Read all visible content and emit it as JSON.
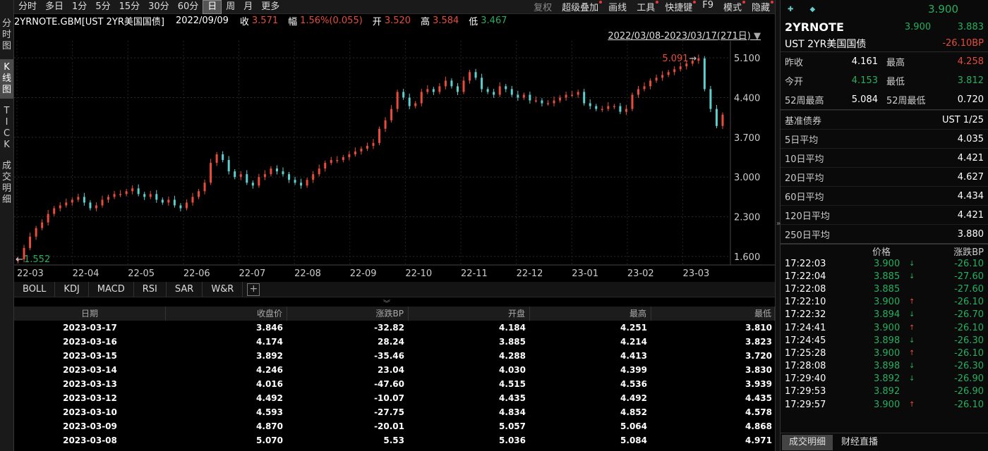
{
  "left_strip": [
    "分时图",
    "K线图",
    "TICK",
    "成交明细"
  ],
  "periods": [
    "分时",
    "多日",
    "1分",
    "5分",
    "15分",
    "30分",
    "60分",
    "日",
    "周",
    "月",
    "更多"
  ],
  "tools": [
    "复权",
    "超级叠加",
    "画线",
    "工具",
    "快捷键",
    "F9",
    "模式",
    "隐藏"
  ],
  "info": {
    "symbol": "2YRNOTE.GBM[UST 2YR美国国债]",
    "date": "2022/09/09",
    "close_label": "收",
    "close": "3.571",
    "range_label": "幅",
    "range": "1.56%(0.055)",
    "open_label": "开",
    "open": "3.520",
    "high_label": "高",
    "high": "3.584",
    "low_label": "低",
    "low": "3.467"
  },
  "chart_range": "2022/03/08-2023/03/17(271日)",
  "chart_data": {
    "type": "candlestick",
    "x_ticks": [
      "22-03",
      "22-04",
      "22-05",
      "22-06",
      "22-07",
      "22-08",
      "22-09",
      "22-10",
      "22-11",
      "22-12",
      "23-01",
      "23-02",
      "23-03"
    ],
    "y_ticks": [
      "5.100",
      "4.400",
      "3.700",
      "3.000",
      "2.300",
      "1.600"
    ],
    "ylim": [
      1.45,
      5.4
    ],
    "max_marker": "5.091",
    "min_marker": "1.552",
    "grid": true,
    "close_path": [
      1.55,
      1.75,
      1.95,
      2.1,
      2.2,
      2.35,
      2.45,
      2.5,
      2.55,
      2.6,
      2.65,
      2.55,
      2.45,
      2.5,
      2.6,
      2.65,
      2.7,
      2.7,
      2.75,
      2.8,
      2.7,
      2.65,
      2.7,
      2.6,
      2.55,
      2.6,
      2.5,
      2.45,
      2.55,
      2.65,
      2.75,
      2.9,
      3.25,
      3.4,
      3.3,
      3.1,
      3.0,
      3.05,
      2.9,
      2.85,
      3.0,
      3.05,
      3.15,
      3.1,
      3.05,
      2.95,
      2.9,
      2.85,
      2.95,
      3.05,
      3.15,
      3.25,
      3.3,
      3.3,
      3.35,
      3.4,
      3.45,
      3.5,
      3.55,
      3.6,
      3.85,
      4.0,
      4.2,
      4.5,
      4.4,
      4.25,
      4.3,
      4.5,
      4.55,
      4.5,
      4.6,
      4.7,
      4.6,
      4.5,
      4.7,
      4.85,
      4.75,
      4.55,
      4.5,
      4.45,
      4.6,
      4.55,
      4.45,
      4.4,
      4.45,
      4.35,
      4.35,
      4.3,
      4.3,
      4.35,
      4.4,
      4.45,
      4.45,
      4.5,
      4.3,
      4.25,
      4.2,
      4.2,
      4.25,
      4.25,
      4.15,
      4.2,
      4.45,
      4.55,
      4.6,
      4.7,
      4.75,
      4.8,
      4.85,
      4.9,
      4.95,
      5.0,
      5.05,
      5.091,
      4.55,
      4.2,
      3.9,
      4.1
    ]
  },
  "indicators": [
    "BOLL",
    "KDJ",
    "MACD",
    "RSI",
    "SAR",
    "W&R"
  ],
  "table": {
    "headers": [
      "日期",
      "收盘价",
      "涨跌BP",
      "开盘",
      "最高",
      "最低"
    ],
    "rows": [
      [
        "2023-03-17",
        "3.846",
        "-32.82",
        "4.184",
        "4.251",
        "3.810"
      ],
      [
        "2023-03-16",
        "4.174",
        "28.24",
        "3.885",
        "4.214",
        "3.823"
      ],
      [
        "2023-03-15",
        "3.892",
        "-35.46",
        "4.288",
        "4.413",
        "3.720"
      ],
      [
        "2023-03-14",
        "4.246",
        "23.04",
        "4.030",
        "4.399",
        "3.830"
      ],
      [
        "2023-03-13",
        "4.016",
        "-47.60",
        "4.515",
        "4.536",
        "3.939"
      ],
      [
        "2023-03-12",
        "4.492",
        "-10.07",
        "4.435",
        "4.492",
        "4.435"
      ],
      [
        "2023-03-10",
        "4.593",
        "-27.75",
        "4.834",
        "4.852",
        "4.578"
      ],
      [
        "2023-03-09",
        "4.870",
        "-20.01",
        "5.057",
        "5.064",
        "4.868"
      ],
      [
        "2023-03-08",
        "5.070",
        "5.53",
        "5.036",
        "5.084",
        "4.971"
      ]
    ]
  },
  "right": {
    "top_price": "3.900",
    "symbol": "2YRNOTE",
    "price1": "3.900",
    "price2": "3.883",
    "name": "UST 2YR美国国债",
    "change_bp": "-26.10BP",
    "stats": [
      {
        "k": "昨收",
        "v": "4.161",
        "vc": "white",
        "k2": "最高",
        "v2": "4.258",
        "v2c": "red"
      },
      {
        "k": "今开",
        "v": "4.153",
        "vc": "green",
        "k2": "最低",
        "v2": "3.812",
        "v2c": "green"
      },
      {
        "k": "52周最高",
        "v": "5.084",
        "vc": "white",
        "k2": "52周最低",
        "v2": "0.720",
        "v2c": "white"
      }
    ],
    "averages": [
      {
        "k": "基准债券",
        "v": "UST 1/25"
      },
      {
        "k": "5日平均",
        "v": "4.035"
      },
      {
        "k": "10日平均",
        "v": "4.421"
      },
      {
        "k": "20日平均",
        "v": "4.627"
      },
      {
        "k": "60日平均",
        "v": "4.434"
      },
      {
        "k": "120日平均",
        "v": "4.421"
      },
      {
        "k": "250日平均",
        "v": "3.880"
      }
    ],
    "trade_headers": [
      "价格",
      "涨跌BP"
    ],
    "trades": [
      {
        "t": "17:22:03",
        "p": "3.900",
        "dir": "down",
        "b": "-26.10"
      },
      {
        "t": "17:22:04",
        "p": "3.885",
        "dir": "down",
        "b": "-27.60"
      },
      {
        "t": "17:22:08",
        "p": "3.885",
        "dir": "",
        "b": "-27.60"
      },
      {
        "t": "17:22:10",
        "p": "3.900",
        "dir": "up",
        "b": "-26.10"
      },
      {
        "t": "17:22:32",
        "p": "3.894",
        "dir": "down",
        "b": "-26.70"
      },
      {
        "t": "17:24:41",
        "p": "3.900",
        "dir": "up",
        "b": "-26.10"
      },
      {
        "t": "17:24:45",
        "p": "3.898",
        "dir": "down",
        "b": "-26.30"
      },
      {
        "t": "17:25:28",
        "p": "3.900",
        "dir": "up",
        "b": "-26.10"
      },
      {
        "t": "17:28:08",
        "p": "3.898",
        "dir": "down",
        "b": "-26.30"
      },
      {
        "t": "17:29:40",
        "p": "3.892",
        "dir": "down",
        "b": "-26.90"
      },
      {
        "t": "17:29:53",
        "p": "3.892",
        "dir": "",
        "b": "-26.90"
      },
      {
        "t": "17:29:57",
        "p": "3.900",
        "dir": "up",
        "b": "-26.10"
      }
    ],
    "tabs": [
      "成交明细",
      "财经直播"
    ]
  },
  "colors": {
    "up": "#e74c3c",
    "down": "#5ecfcf",
    "green": "#27ae60",
    "bg": "#000000"
  }
}
